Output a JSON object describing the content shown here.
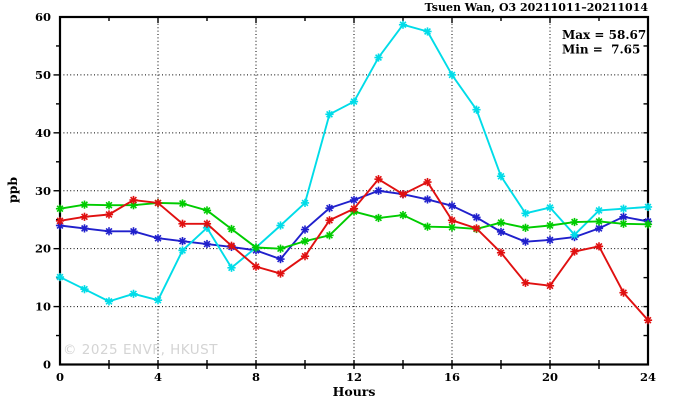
{
  "watermark": "© 2025 ENVF, HKUST",
  "chart_data": {
    "type": "line",
    "title": "Tsuen Wan, O3 20211011–20211014",
    "xlabel": "Hours",
    "ylabel": "ppb",
    "xlim": [
      0,
      24
    ],
    "ylim": [
      0,
      60
    ],
    "x_ticks": [
      0,
      4,
      8,
      12,
      16,
      20,
      24
    ],
    "y_ticks": [
      0,
      10,
      20,
      30,
      40,
      50,
      60
    ],
    "grid": true,
    "grid_color": "#000000",
    "legend": "none",
    "annotations": {
      "max": "Max = 58.67",
      "min": "Min =  7.65",
      "max_value": 58.67,
      "min_value": 7.65
    },
    "x": [
      0,
      1,
      2,
      3,
      4,
      5,
      6,
      7,
      8,
      9,
      10,
      11,
      12,
      13,
      14,
      15,
      16,
      17,
      18,
      19,
      20,
      21,
      22,
      23,
      24
    ],
    "series": [
      {
        "name": "series-blue",
        "color": "#2020cc",
        "values": [
          24.0,
          23.5,
          23.0,
          23.0,
          21.8,
          21.3,
          20.8,
          20.3,
          19.7,
          18.2,
          23.3,
          27.0,
          28.4,
          30.0,
          29.4,
          28.5,
          27.4,
          25.4,
          22.9,
          21.2,
          21.5,
          22.0,
          23.5,
          25.5,
          24.7
        ]
      },
      {
        "name": "series-cyan",
        "color": "#00dce8",
        "values": [
          15.1,
          13.0,
          10.9,
          12.2,
          11.1,
          19.7,
          23.6,
          16.7,
          20.2,
          24.0,
          27.9,
          43.2,
          45.4,
          53.0,
          58.67,
          57.5,
          50.0,
          44.0,
          32.5,
          26.1,
          27.1,
          22.4,
          26.6,
          26.9,
          27.2
        ]
      },
      {
        "name": "series-green",
        "color": "#00cc00",
        "values": [
          26.9,
          27.6,
          27.5,
          27.5,
          27.9,
          27.8,
          26.6,
          23.4,
          20.2,
          20.0,
          21.3,
          22.3,
          26.4,
          25.3,
          25.8,
          23.8,
          23.7,
          23.4,
          24.5,
          23.6,
          24.0,
          24.6,
          24.7,
          24.3,
          24.2
        ]
      },
      {
        "name": "series-red",
        "color": "#e01010",
        "values": [
          24.8,
          25.5,
          25.9,
          28.4,
          27.9,
          24.3,
          24.3,
          20.5,
          16.9,
          15.7,
          18.7,
          24.9,
          26.9,
          32.0,
          29.4,
          31.5,
          24.9,
          23.5,
          19.3,
          14.1,
          13.6,
          19.5,
          20.4,
          12.4,
          7.65
        ]
      }
    ]
  }
}
